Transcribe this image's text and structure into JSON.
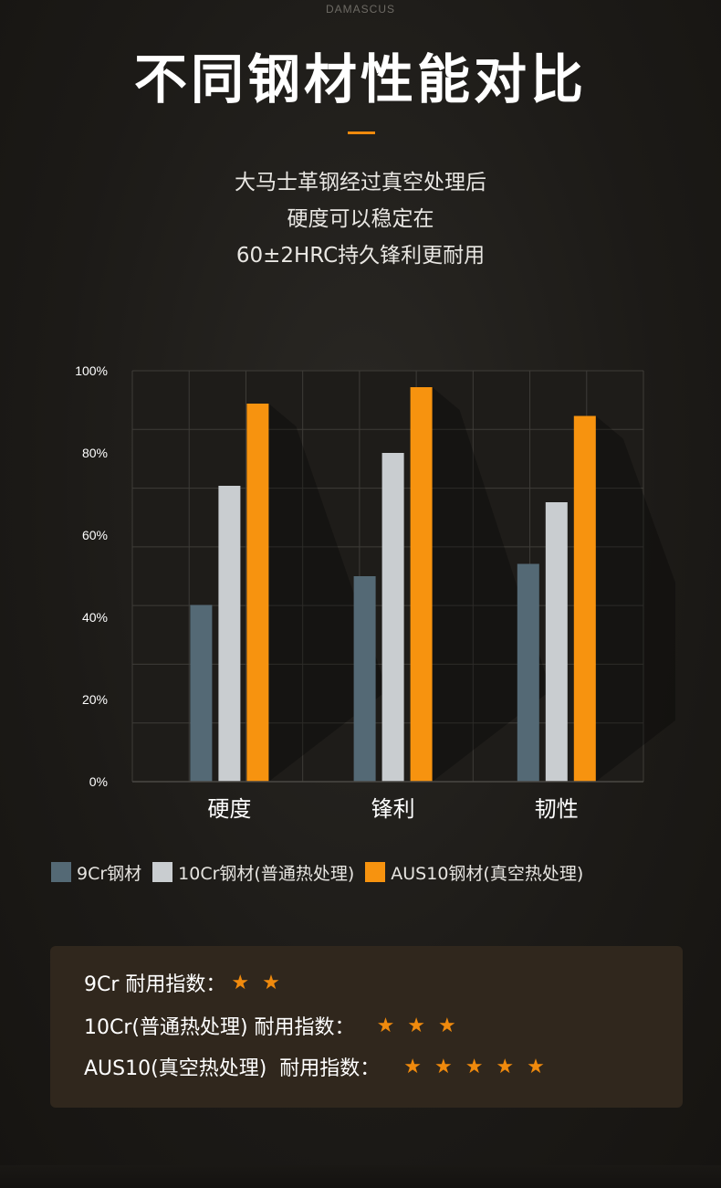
{
  "brand": "DAMASCUS",
  "title": "不同钢材性能对比",
  "subtitle": [
    "大马士革钢经过真空处理后",
    "硬度可以稳定在",
    "60±2HRC持久锋利更耐用"
  ],
  "chart_data": {
    "type": "bar",
    "categories": [
      "硬度",
      "锋利",
      "韧性"
    ],
    "ylim": [
      0,
      100
    ],
    "ytick_labels": [
      "0%",
      "20%",
      "40%",
      "60%",
      "80%",
      "100%"
    ],
    "grid": true,
    "legend_position": "bottom",
    "series": [
      {
        "name": "9Cr钢材",
        "color": "#546975",
        "values": [
          43,
          50,
          53
        ]
      },
      {
        "name": "10Cr钢材(普通热处理)",
        "color": "#c9cdd0",
        "values": [
          72,
          80,
          68
        ]
      },
      {
        "name": "AUS10钢材(真空热处理)",
        "color": "#f7930f",
        "values": [
          92,
          96,
          89
        ]
      }
    ]
  },
  "ratings": [
    {
      "label": "9Cr 耐用指数：",
      "stars": "★★",
      "star_count": 2
    },
    {
      "label": "10Cr(普通热处理) 耐用指数：",
      "stars": "★★★",
      "star_count": 3
    },
    {
      "label": "AUS10(真空热处理)  耐用指数：",
      "stars": "★★★★★",
      "star_count": 5
    }
  ],
  "colors": {
    "accent": "#f08a0d",
    "panel": "#30271d",
    "grid": "#3e3c38"
  }
}
